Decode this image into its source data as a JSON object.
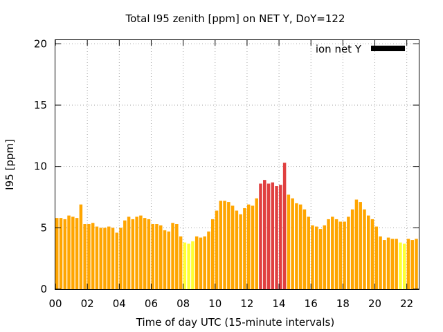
{
  "chart_data": {
    "type": "bar",
    "title": "Total I95 zenith [ppm] on NET Y, DoY=122",
    "xlabel": "Time of day UTC (15-minute intervals)",
    "ylabel": "I95 [ppm]",
    "xlim": [
      0,
      22.75
    ],
    "ylim": [
      0,
      20.3
    ],
    "xticks": [
      "00",
      "02",
      "04",
      "06",
      "08",
      "10",
      "12",
      "14",
      "16",
      "18",
      "20",
      "22"
    ],
    "yticks": [
      "0",
      "5",
      "10",
      "15",
      "20"
    ],
    "grid": true,
    "legend": {
      "label": "ion net Y",
      "position": "top-right",
      "color": "#000000"
    },
    "bar_interval_hours": 0.25,
    "colors": {
      "yellow": "#ffff33",
      "orange": "#ffa500",
      "red": "#e04040"
    },
    "values": [
      5.8,
      5.8,
      5.7,
      6.0,
      5.9,
      5.8,
      6.9,
      5.3,
      5.3,
      5.4,
      5.1,
      5.0,
      5.0,
      5.1,
      5.0,
      4.6,
      5.0,
      5.6,
      5.9,
      5.7,
      5.9,
      6.0,
      5.8,
      5.7,
      5.3,
      5.3,
      5.2,
      4.8,
      4.7,
      5.4,
      5.3,
      4.3,
      3.8,
      3.7,
      3.9,
      4.3,
      4.2,
      4.3,
      4.7,
      5.7,
      6.4,
      7.2,
      7.2,
      7.1,
      6.8,
      6.4,
      6.1,
      6.6,
      6.9,
      6.8,
      7.4,
      8.6,
      8.9,
      8.6,
      8.7,
      8.4,
      8.5,
      10.3,
      7.7,
      7.4,
      7.0,
      6.9,
      6.5,
      5.9,
      5.2,
      5.1,
      4.9,
      5.2,
      5.7,
      5.9,
      5.7,
      5.5,
      5.5,
      5.9,
      6.5,
      7.3,
      7.1,
      6.5,
      6.0,
      5.7,
      5.1,
      4.3,
      4.0,
      4.2,
      4.1,
      4.1,
      3.8,
      3.7,
      4.1,
      4.0,
      4.1
    ],
    "bar_colors": [
      "orange",
      "orange",
      "orange",
      "orange",
      "orange",
      "orange",
      "orange",
      "orange",
      "orange",
      "orange",
      "orange",
      "orange",
      "orange",
      "orange",
      "orange",
      "orange",
      "orange",
      "orange",
      "orange",
      "orange",
      "orange",
      "orange",
      "orange",
      "orange",
      "orange",
      "orange",
      "orange",
      "orange",
      "orange",
      "orange",
      "orange",
      "orange",
      "yellow",
      "yellow",
      "yellow",
      "orange",
      "orange",
      "orange",
      "orange",
      "orange",
      "orange",
      "orange",
      "orange",
      "orange",
      "orange",
      "orange",
      "orange",
      "orange",
      "orange",
      "orange",
      "orange",
      "red",
      "red",
      "red",
      "red",
      "red",
      "red",
      "red",
      "orange",
      "orange",
      "orange",
      "orange",
      "orange",
      "orange",
      "orange",
      "orange",
      "orange",
      "orange",
      "orange",
      "orange",
      "orange",
      "orange",
      "orange",
      "orange",
      "orange",
      "orange",
      "orange",
      "orange",
      "orange",
      "orange",
      "orange",
      "orange",
      "orange",
      "orange",
      "orange",
      "orange",
      "yellow",
      "yellow",
      "orange",
      "orange",
      "orange"
    ]
  }
}
